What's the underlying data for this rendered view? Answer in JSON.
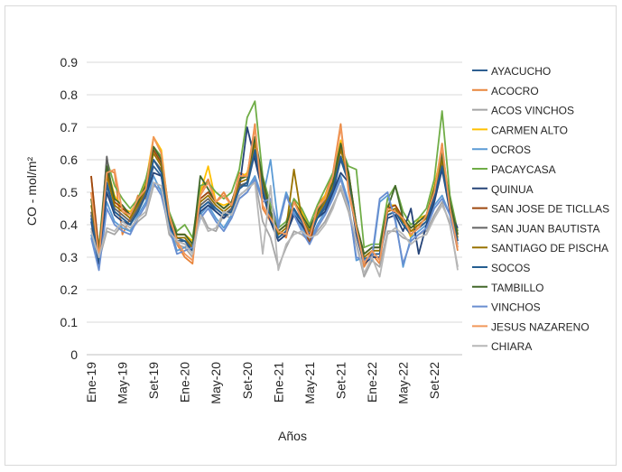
{
  "chart_data": {
    "type": "line",
    "ylabel": "CO - mol/m²",
    "xlabel": "Años",
    "ylim": [
      0,
      0.9
    ],
    "yticks": [
      "0",
      "0.1",
      "0.2",
      "0.3",
      "0.4",
      "0.5",
      "0.6",
      "0.7",
      "0.8",
      "0.9"
    ],
    "x_tick_labels": [
      "Ene-19",
      "May-19",
      "Set-19",
      "Ene-20",
      "May-20",
      "Set-20",
      "Ene-21",
      "May-21",
      "Set-21",
      "Ene-22",
      "May-22",
      "Set-22"
    ],
    "x_start": "Ene-19",
    "x_end": "Dic-22",
    "grid": true,
    "legend_position": "right",
    "base_profile": [
      0.45,
      0.31,
      0.55,
      0.46,
      0.44,
      0.42,
      0.46,
      0.51,
      0.62,
      0.58,
      0.42,
      0.36,
      0.36,
      0.33,
      0.47,
      0.49,
      0.46,
      0.44,
      0.46,
      0.53,
      0.54,
      0.65,
      0.53,
      0.43,
      0.37,
      0.39,
      0.46,
      0.42,
      0.38,
      0.43,
      0.47,
      0.52,
      0.63,
      0.55,
      0.39,
      0.3,
      0.32,
      0.32,
      0.44,
      0.45,
      0.41,
      0.38,
      0.4,
      0.42,
      0.5,
      0.6,
      0.46,
      0.36
    ],
    "series": [
      {
        "name": "AYACUCHO",
        "color": "#2e5f91",
        "values": [
          0.43,
          0.29,
          0.52,
          0.44,
          0.42,
          0.4,
          0.44,
          0.5,
          0.58,
          0.55,
          0.41,
          0.36,
          0.35,
          0.33,
          0.45,
          0.47,
          0.44,
          0.42,
          0.44,
          0.52,
          0.52,
          0.62,
          0.52,
          0.42,
          0.36,
          0.38,
          0.44,
          0.41,
          0.36,
          0.42,
          0.45,
          0.5,
          0.6,
          0.53,
          0.38,
          0.29,
          0.31,
          0.31,
          0.43,
          0.44,
          0.4,
          0.37,
          0.39,
          0.41,
          0.48,
          0.58,
          0.45,
          0.35
        ]
      },
      {
        "name": "ACOCRO",
        "color": "#e8853c",
        "values": [
          0.55,
          0.3,
          0.57,
          0.56,
          0.37,
          0.42,
          0.49,
          0.48,
          0.67,
          0.62,
          0.43,
          0.34,
          0.3,
          0.28,
          0.5,
          0.54,
          0.47,
          0.5,
          0.46,
          0.56,
          0.55,
          0.71,
          0.45,
          0.41,
          0.38,
          0.36,
          0.48,
          0.41,
          0.35,
          0.46,
          0.49,
          0.56,
          0.71,
          0.5,
          0.39,
          0.27,
          0.31,
          0.28,
          0.46,
          0.44,
          0.42,
          0.38,
          0.39,
          0.43,
          0.5,
          0.65,
          0.44,
          0.32
        ]
      },
      {
        "name": "ACOS VINCHOS",
        "color": "#a5a5a5",
        "values": [
          0.39,
          0.29,
          0.38,
          0.37,
          0.4,
          0.38,
          0.41,
          0.43,
          0.52,
          0.51,
          0.37,
          0.34,
          0.33,
          0.3,
          0.44,
          0.39,
          0.38,
          0.43,
          0.42,
          0.48,
          0.5,
          0.54,
          0.41,
          0.36,
          0.27,
          0.33,
          0.38,
          0.37,
          0.35,
          0.38,
          0.41,
          0.46,
          0.51,
          0.44,
          0.34,
          0.24,
          0.29,
          0.27,
          0.38,
          0.38,
          0.36,
          0.35,
          0.37,
          0.38,
          0.43,
          0.47,
          0.4,
          0.27
        ]
      },
      {
        "name": "CARMEN ALTO",
        "color": "#ffc000",
        "values": [
          0.48,
          0.31,
          0.58,
          0.49,
          0.45,
          0.44,
          0.47,
          0.53,
          0.67,
          0.63,
          0.43,
          0.37,
          0.37,
          0.35,
          0.5,
          0.58,
          0.47,
          0.46,
          0.47,
          0.54,
          0.56,
          0.66,
          0.53,
          0.44,
          0.38,
          0.4,
          0.47,
          0.44,
          0.39,
          0.44,
          0.49,
          0.54,
          0.66,
          0.56,
          0.4,
          0.31,
          0.33,
          0.33,
          0.46,
          0.46,
          0.42,
          0.36,
          0.42,
          0.43,
          0.52,
          0.63,
          0.47,
          0.37
        ]
      },
      {
        "name": "OCROS",
        "color": "#5b9bd5",
        "values": [
          0.37,
          0.27,
          0.47,
          0.41,
          0.39,
          0.38,
          0.43,
          0.47,
          0.55,
          0.5,
          0.4,
          0.32,
          0.33,
          0.34,
          0.43,
          0.46,
          0.42,
          0.39,
          0.43,
          0.49,
          0.51,
          0.55,
          0.48,
          0.6,
          0.4,
          0.5,
          0.44,
          0.39,
          0.35,
          0.4,
          0.44,
          0.49,
          0.55,
          0.47,
          0.29,
          0.3,
          0.29,
          0.47,
          0.49,
          0.42,
          0.27,
          0.36,
          0.38,
          0.4,
          0.46,
          0.49,
          0.43,
          0.34
        ]
      },
      {
        "name": "PACAYCASA",
        "color": "#70ad47",
        "values": [
          0.5,
          0.33,
          0.6,
          0.52,
          0.48,
          0.45,
          0.48,
          0.54,
          0.64,
          0.61,
          0.44,
          0.38,
          0.4,
          0.36,
          0.52,
          0.53,
          0.5,
          0.48,
          0.5,
          0.57,
          0.73,
          0.78,
          0.55,
          0.46,
          0.39,
          0.41,
          0.48,
          0.45,
          0.4,
          0.46,
          0.51,
          0.56,
          0.64,
          0.58,
          0.57,
          0.33,
          0.34,
          0.34,
          0.48,
          0.52,
          0.44,
          0.4,
          0.42,
          0.45,
          0.54,
          0.75,
          0.49,
          0.38
        ]
      },
      {
        "name": "QUINUA",
        "color": "#264478",
        "values": [
          0.41,
          0.28,
          0.5,
          0.43,
          0.41,
          0.4,
          0.44,
          0.49,
          0.56,
          0.55,
          0.4,
          0.35,
          0.34,
          0.32,
          0.44,
          0.46,
          0.44,
          0.42,
          0.45,
          0.51,
          0.7,
          0.6,
          0.5,
          0.41,
          0.35,
          0.37,
          0.43,
          0.4,
          0.36,
          0.42,
          0.44,
          0.5,
          0.56,
          0.53,
          0.37,
          0.28,
          0.3,
          0.3,
          0.42,
          0.43,
          0.38,
          0.45,
          0.31,
          0.4,
          0.47,
          0.57,
          0.44,
          0.39
        ]
      },
      {
        "name": "SAN JOSE DE TICLLAS",
        "color": "#9e480e",
        "values": [
          0.55,
          0.32,
          0.56,
          0.47,
          0.45,
          0.43,
          0.47,
          0.52,
          0.63,
          0.59,
          0.43,
          0.37,
          0.37,
          0.34,
          0.48,
          0.5,
          0.47,
          0.45,
          0.47,
          0.54,
          0.55,
          0.66,
          0.54,
          0.44,
          0.38,
          0.4,
          0.47,
          0.43,
          0.34,
          0.44,
          0.48,
          0.53,
          0.64,
          0.56,
          0.4,
          0.31,
          0.33,
          0.33,
          0.45,
          0.46,
          0.42,
          0.39,
          0.41,
          0.43,
          0.51,
          0.61,
          0.47,
          0.37
        ]
      },
      {
        "name": "SAN JUAN BAUTISTA",
        "color": "#636363",
        "values": [
          0.44,
          0.3,
          0.61,
          0.45,
          0.43,
          0.41,
          0.45,
          0.5,
          0.6,
          0.57,
          0.41,
          0.35,
          0.35,
          0.33,
          0.46,
          0.48,
          0.45,
          0.43,
          0.45,
          0.52,
          0.53,
          0.63,
          0.52,
          0.42,
          0.36,
          0.38,
          0.45,
          0.41,
          0.37,
          0.42,
          0.46,
          0.51,
          0.61,
          0.54,
          0.38,
          0.29,
          0.31,
          0.31,
          0.43,
          0.44,
          0.4,
          0.37,
          0.39,
          0.41,
          0.49,
          0.59,
          0.45,
          0.35
        ]
      },
      {
        "name": "SANTIAGO DE PISCHA",
        "color": "#997300",
        "values": [
          0.46,
          0.32,
          0.55,
          0.46,
          0.44,
          0.42,
          0.46,
          0.51,
          0.62,
          0.58,
          0.42,
          0.36,
          0.36,
          0.33,
          0.47,
          0.49,
          0.46,
          0.44,
          0.46,
          0.53,
          0.54,
          0.65,
          0.53,
          0.43,
          0.37,
          0.39,
          0.57,
          0.42,
          0.38,
          0.43,
          0.47,
          0.52,
          0.63,
          0.55,
          0.39,
          0.3,
          0.32,
          0.32,
          0.44,
          0.45,
          0.41,
          0.38,
          0.4,
          0.42,
          0.5,
          0.6,
          0.46,
          0.36
        ]
      },
      {
        "name": "SOCOS",
        "color": "#255e91",
        "values": [
          0.42,
          0.29,
          0.53,
          0.44,
          0.42,
          0.4,
          0.44,
          0.49,
          0.6,
          0.56,
          0.4,
          0.35,
          0.35,
          0.32,
          0.45,
          0.47,
          0.45,
          0.43,
          0.44,
          0.51,
          0.53,
          0.63,
          0.51,
          0.42,
          0.36,
          0.38,
          0.45,
          0.41,
          0.37,
          0.42,
          0.46,
          0.51,
          0.61,
          0.53,
          0.38,
          0.29,
          0.31,
          0.31,
          0.43,
          0.44,
          0.4,
          0.37,
          0.39,
          0.41,
          0.49,
          0.58,
          0.45,
          0.35
        ]
      },
      {
        "name": "TAMBILLO",
        "color": "#43682b",
        "values": [
          0.48,
          0.31,
          0.58,
          0.48,
          0.46,
          0.43,
          0.47,
          0.52,
          0.64,
          0.6,
          0.43,
          0.37,
          0.37,
          0.34,
          0.55,
          0.51,
          0.47,
          0.45,
          0.47,
          0.54,
          0.55,
          0.67,
          0.54,
          0.44,
          0.38,
          0.4,
          0.47,
          0.43,
          0.39,
          0.44,
          0.48,
          0.53,
          0.65,
          0.56,
          0.4,
          0.31,
          0.33,
          0.33,
          0.45,
          0.52,
          0.42,
          0.39,
          0.41,
          0.43,
          0.51,
          0.62,
          0.47,
          0.37
        ]
      },
      {
        "name": "VINCHOS",
        "color": "#698ed0",
        "values": [
          0.36,
          0.26,
          0.45,
          0.4,
          0.38,
          0.37,
          0.42,
          0.46,
          0.53,
          0.49,
          0.39,
          0.31,
          0.32,
          0.33,
          0.42,
          0.45,
          0.41,
          0.38,
          0.42,
          0.48,
          0.5,
          0.54,
          0.47,
          0.48,
          0.39,
          0.49,
          0.43,
          0.38,
          0.34,
          0.39,
          0.43,
          0.48,
          0.54,
          0.46,
          0.3,
          0.29,
          0.3,
          0.48,
          0.5,
          0.41,
          0.28,
          0.35,
          0.37,
          0.39,
          0.45,
          0.48,
          0.43,
          0.33
        ]
      },
      {
        "name": "JESUS NAZARENO",
        "color": "#f1975a",
        "values": [
          0.5,
          0.3,
          0.56,
          0.57,
          0.44,
          0.43,
          0.48,
          0.51,
          0.67,
          0.62,
          0.43,
          0.35,
          0.31,
          0.29,
          0.49,
          0.53,
          0.47,
          0.49,
          0.46,
          0.55,
          0.55,
          0.7,
          0.46,
          0.42,
          0.38,
          0.37,
          0.47,
          0.42,
          0.36,
          0.45,
          0.48,
          0.55,
          0.7,
          0.51,
          0.39,
          0.28,
          0.32,
          0.29,
          0.45,
          0.44,
          0.42,
          0.37,
          0.39,
          0.43,
          0.5,
          0.64,
          0.45,
          0.33
        ]
      },
      {
        "name": "CHIARA",
        "color": "#b7b7b7",
        "values": [
          0.38,
          0.3,
          0.39,
          0.38,
          0.41,
          0.39,
          0.42,
          0.44,
          0.53,
          0.52,
          0.38,
          0.35,
          0.34,
          0.31,
          0.43,
          0.38,
          0.39,
          0.44,
          0.43,
          0.49,
          0.51,
          0.53,
          0.31,
          0.52,
          0.26,
          0.34,
          0.37,
          0.38,
          0.36,
          0.37,
          0.4,
          0.45,
          0.52,
          0.45,
          0.35,
          0.25,
          0.3,
          0.24,
          0.37,
          0.39,
          0.37,
          0.34,
          0.36,
          0.37,
          0.42,
          0.46,
          0.41,
          0.26
        ]
      }
    ]
  }
}
